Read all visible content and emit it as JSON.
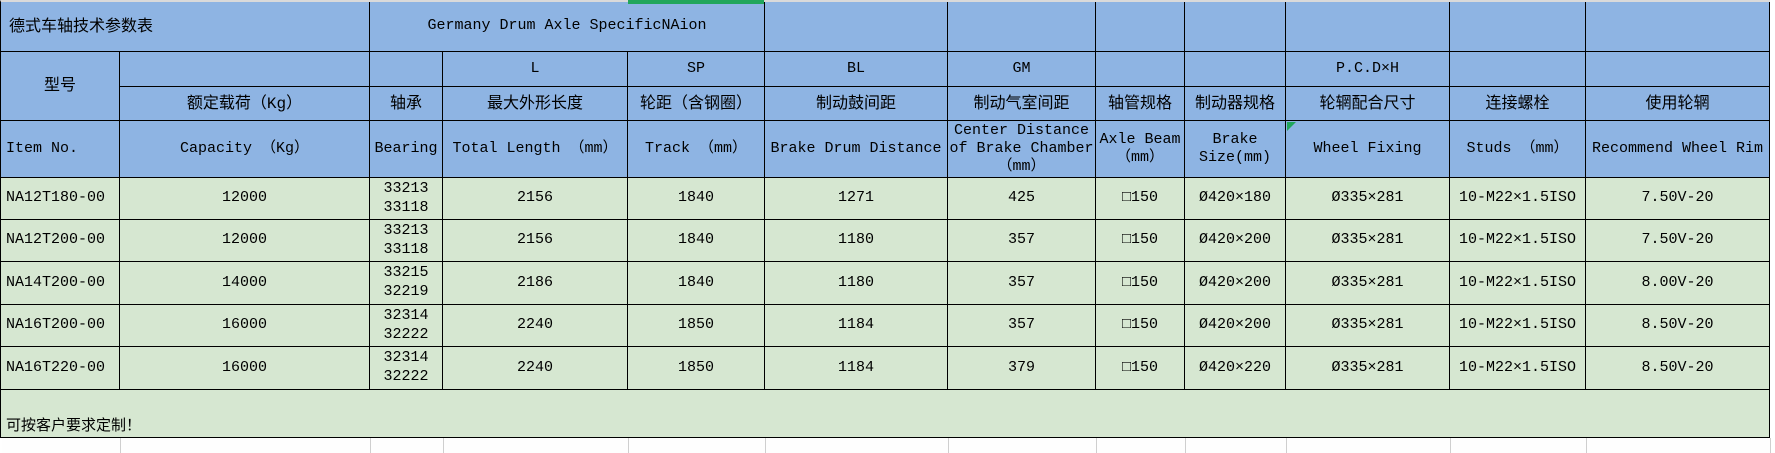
{
  "table": {
    "title_zh": "德式车轴技术参数表",
    "title_en": "Germany Drum Axle SpecificNAion",
    "columns": [
      {
        "code": "",
        "zh": "型号",
        "en": "Item No."
      },
      {
        "code": "",
        "zh": "额定载荷（Kg）",
        "en": "Capacity （Kg）"
      },
      {
        "code": "",
        "zh": "轴承",
        "en": "Bearing"
      },
      {
        "code": "L",
        "zh": "最大外形长度",
        "en": "Total Length （mm）"
      },
      {
        "code": "SP",
        "zh": "轮距（含钢圈）",
        "en": "Track （mm）"
      },
      {
        "code": "BL",
        "zh": "制动鼓间距",
        "en": "Brake Drum Distance"
      },
      {
        "code": "GM",
        "zh": "制动气室间距",
        "en": "Center Distance of Brake Chamber （mm）"
      },
      {
        "code": "",
        "zh": "轴管规格",
        "en": "Axle Beam （mm）"
      },
      {
        "code": "",
        "zh": "制动器规格",
        "en": "Brake Size(mm)"
      },
      {
        "code": "P.C.D×H",
        "zh": "轮辋配合尺寸",
        "en": "Wheel Fixing"
      },
      {
        "code": "",
        "zh": "连接螺栓",
        "en": "Studs （mm）"
      },
      {
        "code": "",
        "zh": "使用轮辋",
        "en": "Recommend Wheel Rim"
      }
    ],
    "rows": [
      [
        "NA12T180-00",
        "12000",
        "33213\n33118",
        "2156",
        "1840",
        "1271",
        "425",
        "□150",
        "Ø420×180",
        "Ø335×281",
        "10-M22×1.5ISO",
        "7.50V-20"
      ],
      [
        "NA12T200-00",
        "12000",
        "33213\n33118",
        "2156",
        "1840",
        "1180",
        "357",
        "□150",
        "Ø420×200",
        "Ø335×281",
        "10-M22×1.5ISO",
        "7.50V-20"
      ],
      [
        "NA14T200-00",
        "14000",
        "33215\n32219",
        "2186",
        "1840",
        "1180",
        "357",
        "□150",
        "Ø420×200",
        "Ø335×281",
        "10-M22×1.5ISO",
        "8.00V-20"
      ],
      [
        "NA16T200-00",
        "16000",
        "32314\n32222",
        "2240",
        "1850",
        "1184",
        "357",
        "□150",
        "Ø420×200",
        "Ø335×281",
        "10-M22×1.5ISO",
        "8.50V-20"
      ],
      [
        "NA16T220-00",
        "16000",
        "32314\n32222",
        "2240",
        "1850",
        "1184",
        "379",
        "□150",
        "Ø420×220",
        "Ø335×281",
        "10-M22×1.5ISO",
        "8.50V-20"
      ]
    ],
    "footer_note": "可按客户要求定制！",
    "colors": {
      "header_blue": "#8eb4e3",
      "row_green": "#d6e7d1",
      "grid_border": "#000000",
      "selection_green": "#21a65b"
    }
  }
}
